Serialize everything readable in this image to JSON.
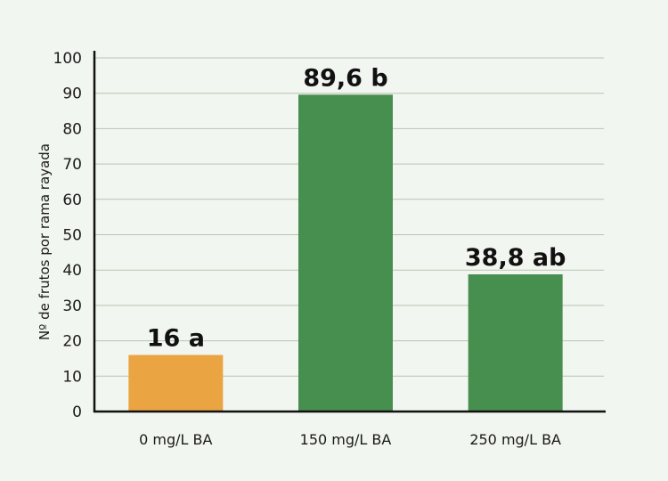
{
  "chart_data": {
    "type": "bar",
    "categories": [
      "0 mg/L BA",
      "150 mg/L BA",
      "250 mg/L BA"
    ],
    "values": [
      16,
      89.6,
      38.8
    ],
    "data_labels": [
      "16 a",
      "89,6 b",
      "38,8 ab"
    ],
    "bar_colors": [
      "#eaa442",
      "#478f4f",
      "#478f4f"
    ],
    "title": "",
    "xlabel": "",
    "ylabel": "Nº de frutos por rama rayada",
    "ylim": [
      0,
      100
    ],
    "yticks": [
      0,
      10,
      20,
      30,
      40,
      50,
      60,
      70,
      80,
      90,
      100
    ],
    "grid": true
  }
}
